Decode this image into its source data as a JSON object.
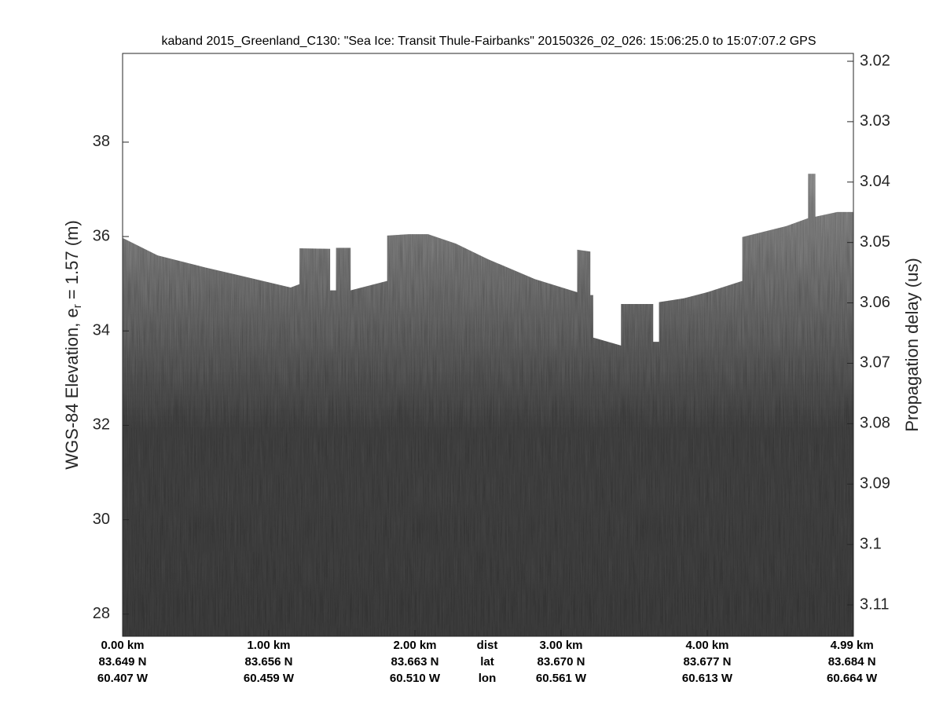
{
  "chart_data": {
    "type": "echogram",
    "title": "kaband 2015_Greenland_C130: \"Sea Ice: Transit Thule-Fairbanks\"  20150326_02_026: 15:06:25.0 to 15:07:07.2 GPS",
    "ylabel": [
      "WGS-84 Elevation, e",
      "r",
      " = 1.57 (m)"
    ],
    "y2label": "Propagation delay (us)",
    "row_names": [
      "dist",
      "lat",
      "lon"
    ],
    "xlim": [
      0,
      5.0
    ],
    "xticks": [
      {
        "value": 0,
        "label": "0.00 km"
      },
      {
        "value": 1,
        "label": "1.00 km"
      },
      {
        "value": 2,
        "label": "2.00 km"
      },
      {
        "value": 3,
        "label": "3.00 km"
      },
      {
        "value": 4,
        "label": "4.00 km"
      },
      {
        "value": 4.99,
        "label": "4.99 km"
      }
    ],
    "lat_labels": [
      "83.649 N",
      "83.656 N",
      "83.663 N",
      "83.670 N",
      "83.677 N",
      "83.684 N"
    ],
    "lon_labels": [
      "60.407 W",
      "60.459 W",
      "60.510 W",
      "60.561 W",
      "60.613 W",
      "60.664 W"
    ],
    "ylim": [
      27.53,
      39.88
    ],
    "yticks": [
      28,
      30,
      32,
      34,
      36,
      38
    ],
    "y2lim": [
      3.0187,
      3.1152
    ],
    "y2ticks": [
      3.02,
      3.03,
      3.04,
      3.05,
      3.06,
      3.07,
      3.08,
      3.09,
      3.1,
      3.11
    ],
    "surface": {
      "x": [
        0,
        0.24,
        0.56,
        0.78,
        1.15,
        1.21,
        1.21,
        1.42,
        1.42,
        1.46,
        1.46,
        1.56,
        1.56,
        1.81,
        1.81,
        1.96,
        2.09,
        2.28,
        2.5,
        2.82,
        3.11,
        3.11,
        3.2,
        3.2,
        3.22,
        3.22,
        3.41,
        3.41,
        3.63,
        3.63,
        3.67,
        3.67,
        3.84,
        4.0,
        4.24,
        4.24,
        4.54,
        4.69,
        4.69,
        4.74,
        4.74,
        4.89,
        5.0
      ],
      "values": [
        35.97,
        35.6,
        35.35,
        35.19,
        34.92,
        34.99,
        35.75,
        35.74,
        34.86,
        34.86,
        35.76,
        35.76,
        34.86,
        35.06,
        36.02,
        36.05,
        36.05,
        35.85,
        35.52,
        35.1,
        34.82,
        35.72,
        35.68,
        34.76,
        34.76,
        33.86,
        33.69,
        34.57,
        34.57,
        33.77,
        33.77,
        34.61,
        34.69,
        34.82,
        35.06,
        35.99,
        36.22,
        36.39,
        37.33,
        37.33,
        36.42,
        36.52,
        36.52
      ]
    },
    "color": "#7a7a7a"
  }
}
